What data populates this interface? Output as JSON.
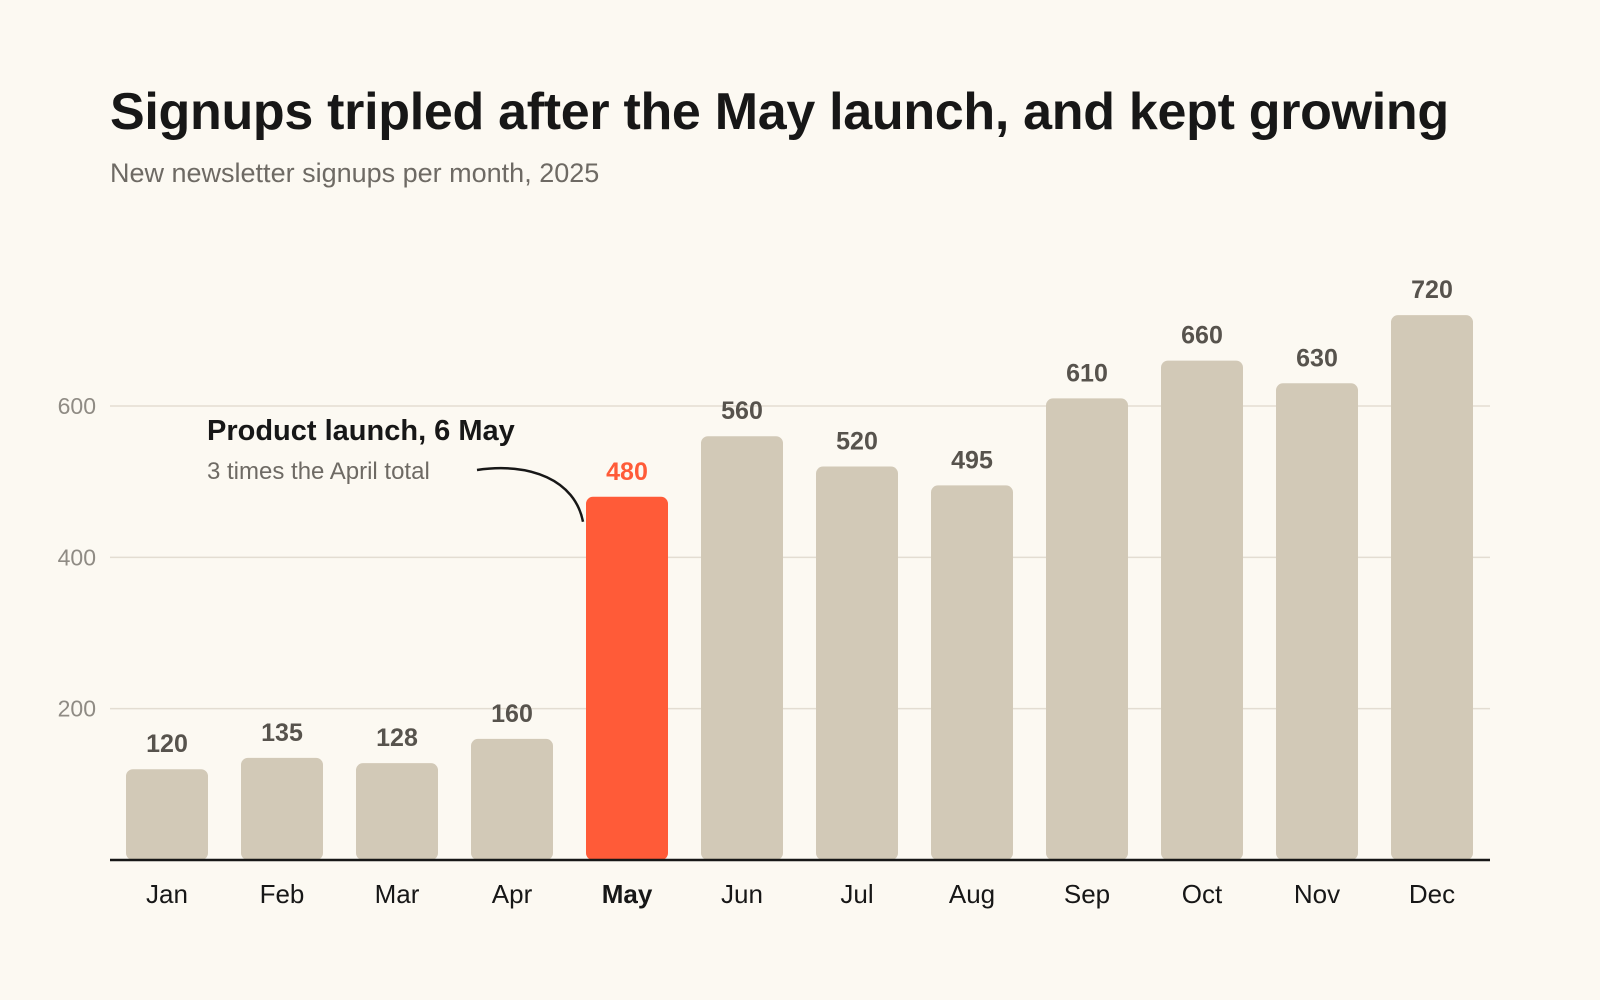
{
  "page": {
    "title": "Signups tripled after the May launch, and kept growing",
    "subtitle": "New newsletter signups per month, 2025"
  },
  "annotation": {
    "title": "Product launch, 6 May",
    "text": "3 times the April total",
    "category": "May"
  },
  "colors": {
    "background": "#fcf9f2",
    "bar": "#d2c9b7",
    "highlight": "#ff5b38",
    "text": "#171717",
    "muted": "#6e6a64",
    "value_label": "#57534d",
    "axis_label": "#8f8b84",
    "grid": "#e3ddd2",
    "axis": "#171717"
  },
  "chart_data": {
    "type": "bar",
    "title": "Signups tripled after the May launch, and kept growing",
    "subtitle": "New newsletter signups per month, 2025",
    "xlabel": "",
    "ylabel": "",
    "categories": [
      "Jan",
      "Feb",
      "Mar",
      "Apr",
      "May",
      "Jun",
      "Jul",
      "Aug",
      "Sep",
      "Oct",
      "Nov",
      "Dec"
    ],
    "values": [
      120,
      135,
      128,
      160,
      480,
      560,
      520,
      495,
      610,
      660,
      630,
      720
    ],
    "highlight": "May",
    "ylim": [
      0,
      720
    ],
    "yticks": [
      200,
      400,
      600
    ],
    "grid": true,
    "legend": "none"
  }
}
